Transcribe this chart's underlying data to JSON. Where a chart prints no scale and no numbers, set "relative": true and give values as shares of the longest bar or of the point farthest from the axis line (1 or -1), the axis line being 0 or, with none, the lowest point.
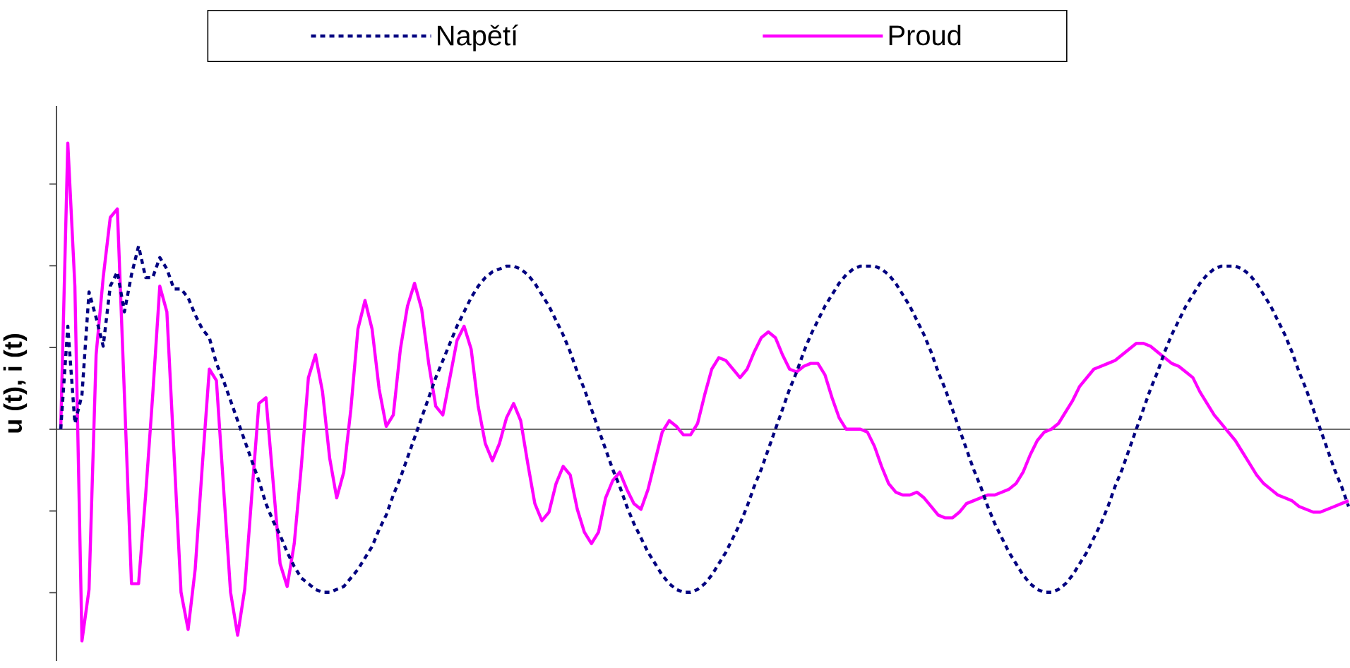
{
  "chart_data": {
    "type": "line",
    "relative": true,
    "legend": "top",
    "ylabel": "u (t), i (t)",
    "categories": [
      null,
      null,
      null,
      null,
      null,
      null,
      null,
      null,
      null,
      null,
      null,
      null,
      null,
      null,
      null,
      null,
      null,
      null,
      null,
      null,
      null,
      null,
      null,
      null,
      null,
      null,
      null,
      null,
      null,
      null,
      null,
      null,
      null,
      null,
      null,
      null,
      null,
      null,
      null,
      null,
      null,
      null,
      null,
      null,
      null,
      null,
      null,
      null,
      null,
      null,
      null,
      null,
      null,
      null,
      null,
      null,
      null,
      null,
      null,
      null,
      null,
      null,
      null,
      null,
      null,
      null,
      null,
      null,
      null,
      null,
      null,
      null,
      null,
      null,
      null,
      null,
      null,
      null,
      null,
      null,
      null,
      null,
      null,
      null,
      null,
      null,
      null,
      null,
      null,
      null,
      null,
      null,
      null,
      null,
      null,
      null,
      null,
      null,
      null,
      null,
      null,
      null,
      null,
      null,
      null,
      null,
      null,
      null,
      null,
      null,
      null,
      null,
      null,
      null,
      null,
      null,
      null,
      null,
      null,
      null,
      null,
      null,
      null,
      null,
      null,
      null,
      null,
      null,
      null,
      null,
      null,
      null,
      null,
      null,
      null,
      null,
      null,
      null,
      null,
      null,
      null,
      null,
      null,
      null,
      null,
      null,
      null,
      null,
      null,
      null,
      null,
      null,
      null,
      null,
      null,
      null,
      null,
      null,
      null,
      null,
      null,
      null,
      null,
      null,
      null,
      null,
      null,
      null,
      null,
      null,
      null,
      null,
      null,
      null,
      null,
      null,
      null,
      null,
      null,
      null,
      null,
      null,
      null
    ],
    "series": [
      {
        "name": "Napětí",
        "color": "#000080",
        "line_style": "dashed",
        "values": [
          0,
          0.36,
          0.02,
          0.12,
          0.48,
          0.39,
          0.29,
          0.5,
          0.55,
          0.41,
          0.54,
          0.64,
          0.53,
          0.53,
          0.6,
          0.56,
          0.49,
          0.49,
          0.46,
          0.4,
          0.35,
          0.32,
          0.23,
          0.17,
          0.1,
          0.03,
          -0.04,
          -0.11,
          -0.18,
          -0.26,
          -0.32,
          -0.37,
          -0.43,
          -0.48,
          -0.52,
          -0.54,
          -0.56,
          -0.57,
          -0.57,
          -0.56,
          -0.55,
          -0.52,
          -0.49,
          -0.45,
          -0.41,
          -0.35,
          -0.3,
          -0.23,
          -0.17,
          -0.1,
          -0.03,
          0.04,
          0.11,
          0.18,
          0.24,
          0.3,
          0.36,
          0.41,
          0.46,
          0.5,
          0.53,
          0.55,
          0.56,
          0.57,
          0.57,
          0.56,
          0.54,
          0.51,
          0.47,
          0.43,
          0.38,
          0.33,
          0.27,
          0.2,
          0.14,
          0.07,
          0.0,
          -0.07,
          -0.14,
          -0.2,
          -0.27,
          -0.33,
          -0.38,
          -0.43,
          -0.47,
          -0.51,
          -0.54,
          -0.56,
          -0.57,
          -0.57,
          -0.56,
          -0.54,
          -0.51,
          -0.47,
          -0.43,
          -0.38,
          -0.33,
          -0.27,
          -0.2,
          -0.14,
          -0.07,
          0.0,
          0.07,
          0.14,
          0.2,
          0.27,
          0.33,
          0.38,
          0.43,
          0.47,
          0.51,
          0.54,
          0.56,
          0.57,
          0.57,
          0.57,
          0.56,
          0.54,
          0.51,
          0.47,
          0.43,
          0.38,
          0.33,
          0.27,
          0.2,
          0.14,
          0.07,
          0.0,
          -0.07,
          -0.14,
          -0.2,
          -0.27,
          -0.33,
          -0.38,
          -0.43,
          -0.47,
          -0.51,
          -0.54,
          -0.56,
          -0.57,
          -0.57,
          -0.56,
          -0.54,
          -0.51,
          -0.47,
          -0.43,
          -0.38,
          -0.33,
          -0.27,
          -0.2,
          -0.14,
          -0.07,
          0.0,
          0.07,
          0.14,
          0.2,
          0.27,
          0.33,
          0.38,
          0.43,
          0.47,
          0.51,
          0.54,
          0.56,
          0.57,
          0.57,
          0.57,
          0.56,
          0.54,
          0.51,
          0.47,
          0.43,
          0.38,
          0.33,
          0.27,
          0.2,
          0.14,
          0.07,
          0.0,
          -0.07,
          -0.14,
          -0.2,
          -0.27
        ]
      },
      {
        "name": "Proud",
        "color": "#ff00ff",
        "line_style": "solid",
        "values": [
          0,
          1.0,
          0.5,
          -0.74,
          -0.56,
          0.26,
          0.53,
          0.74,
          0.77,
          0.12,
          -0.54,
          -0.54,
          -0.23,
          0.12,
          0.5,
          0.41,
          -0.08,
          -0.57,
          -0.7,
          -0.49,
          -0.13,
          0.21,
          0.17,
          -0.2,
          -0.57,
          -0.72,
          -0.56,
          -0.23,
          0.09,
          0.11,
          -0.18,
          -0.47,
          -0.55,
          -0.4,
          -0.13,
          0.18,
          0.26,
          0.13,
          -0.1,
          -0.24,
          -0.15,
          0.07,
          0.35,
          0.45,
          0.35,
          0.14,
          0.01,
          0.05,
          0.28,
          0.43,
          0.51,
          0.42,
          0.23,
          0.08,
          0.05,
          0.18,
          0.31,
          0.36,
          0.28,
          0.08,
          -0.05,
          -0.11,
          -0.05,
          0.04,
          0.09,
          0.03,
          -0.12,
          -0.26,
          -0.32,
          -0.29,
          -0.19,
          -0.13,
          -0.16,
          -0.28,
          -0.36,
          -0.4,
          -0.36,
          -0.24,
          -0.18,
          -0.15,
          -0.21,
          -0.26,
          -0.28,
          -0.21,
          -0.11,
          -0.01,
          0.03,
          0.01,
          -0.02,
          -0.02,
          0.02,
          0.12,
          0.21,
          0.25,
          0.24,
          0.21,
          0.18,
          0.21,
          0.27,
          0.32,
          0.34,
          0.32,
          0.26,
          0.21,
          0.2,
          0.22,
          0.23,
          0.23,
          0.19,
          0.11,
          0.04,
          0.0,
          0.0,
          0.0,
          -0.01,
          -0.06,
          -0.13,
          -0.19,
          -0.22,
          -0.23,
          -0.23,
          -0.22,
          -0.24,
          -0.27,
          -0.3,
          -0.31,
          -0.31,
          -0.29,
          -0.26,
          -0.25,
          -0.24,
          -0.23,
          -0.23,
          -0.22,
          -0.21,
          -0.19,
          -0.15,
          -0.09,
          -0.04,
          -0.01,
          0.0,
          0.02,
          0.06,
          0.1,
          0.15,
          0.18,
          0.21,
          0.22,
          0.23,
          0.24,
          0.26,
          0.28,
          0.3,
          0.3,
          0.29,
          0.27,
          0.25,
          0.23,
          0.22,
          0.2,
          0.18,
          0.13,
          0.09,
          0.05,
          0.02,
          -0.01,
          -0.04,
          -0.08,
          -0.12,
          -0.16,
          -0.19,
          -0.21,
          -0.23,
          -0.24,
          -0.25,
          -0.27,
          -0.28,
          -0.29,
          -0.29,
          -0.28,
          -0.27,
          -0.26,
          -0.25
        ]
      }
    ]
  }
}
